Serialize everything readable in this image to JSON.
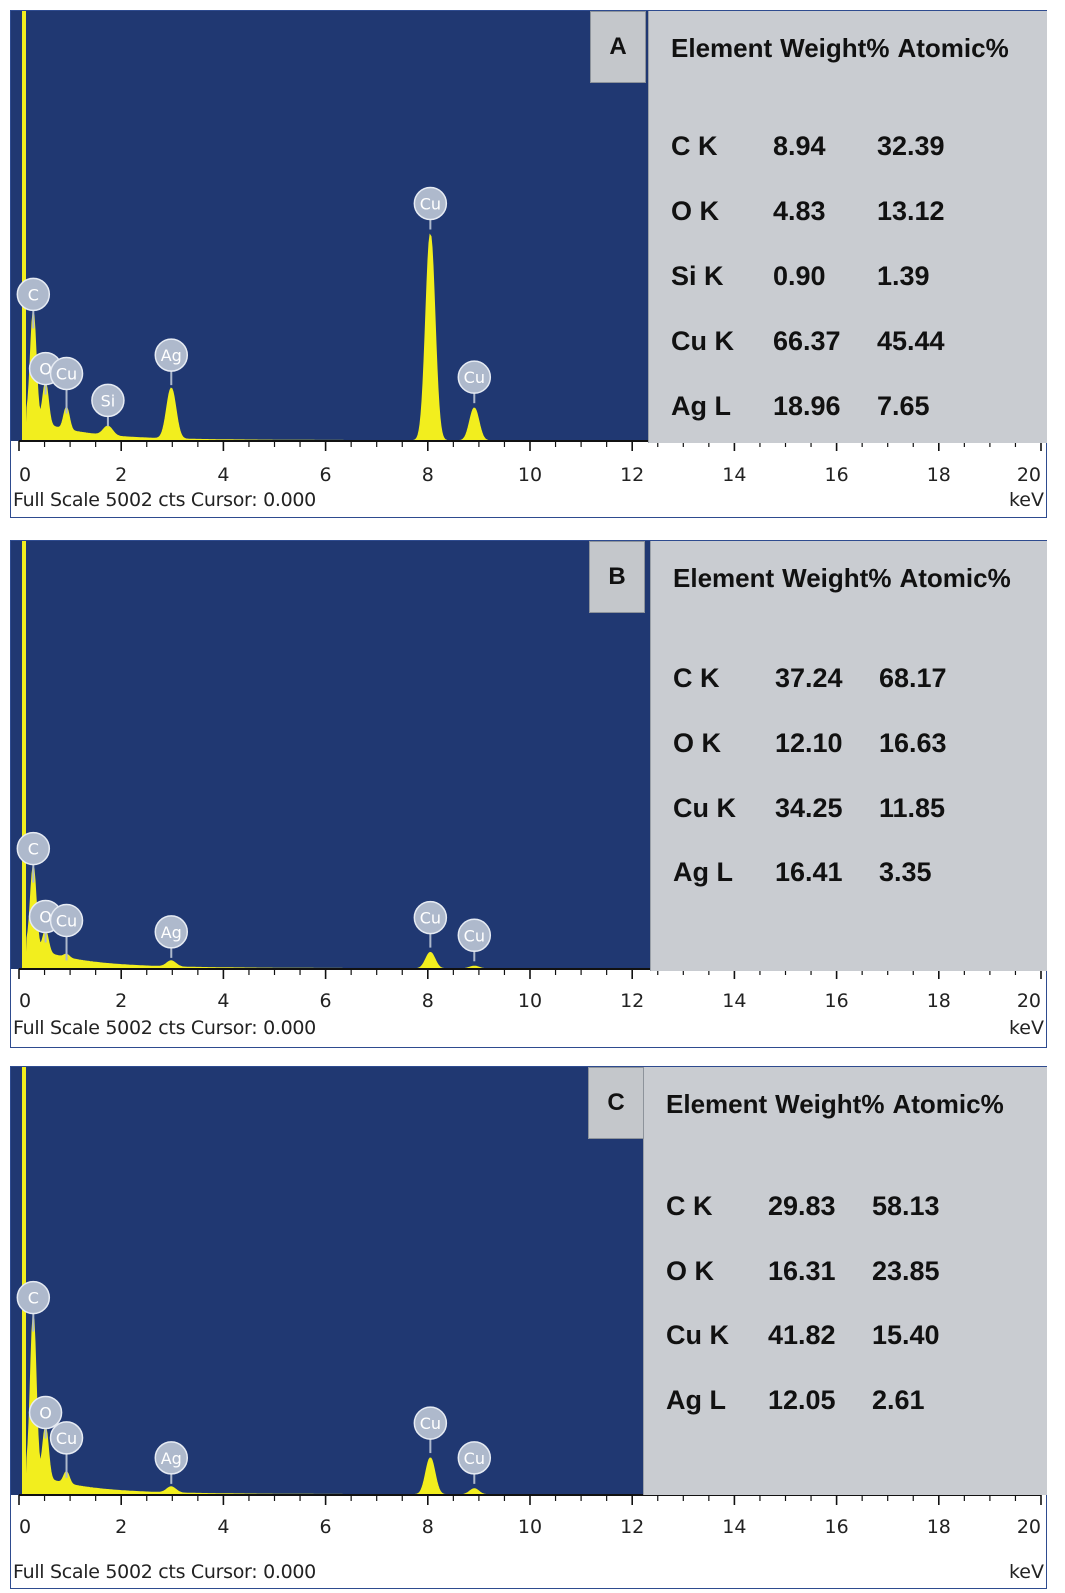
{
  "colors": {
    "plot_bg": "#203872",
    "spectrum": "#f2ee1e",
    "badge": "#aeb9cc",
    "table_bg": "#c9ccd1"
  },
  "panels": [
    {
      "letter": "A",
      "footer": "Full Scale 5002 cts Cursor: 0.000",
      "unit": "keV",
      "x_ticks": [
        "0",
        "2",
        "4",
        "6",
        "8",
        "10",
        "12",
        "14",
        "16",
        "18",
        "20"
      ],
      "table_headers": [
        "Element",
        "Weight%",
        "Atomic%"
      ],
      "rows": [
        {
          "element": "C K",
          "weight": "8.94",
          "atomic": "32.39"
        },
        {
          "element": "O K",
          "weight": "4.83",
          "atomic": "13.12"
        },
        {
          "element": "Si K",
          "weight": "0.90",
          "atomic": "1.39"
        },
        {
          "element": "Cu K",
          "weight": "66.37",
          "atomic": "45.44"
        },
        {
          "element": "Ag L",
          "weight": "18.96",
          "atomic": "7.65"
        }
      ],
      "peak_labels": [
        "C",
        "O",
        "Cu",
        "Si",
        "Ag",
        "Cu",
        "Cu"
      ]
    },
    {
      "letter": "B",
      "footer": "Full Scale 5002 cts Cursor: 0.000",
      "unit": "keV",
      "x_ticks": [
        "0",
        "2",
        "4",
        "6",
        "8",
        "10",
        "12",
        "14",
        "16",
        "18",
        "20"
      ],
      "table_headers": [
        "Element",
        "Weight%",
        "Atomic%"
      ],
      "rows": [
        {
          "element": "C K",
          "weight": "37.24",
          "atomic": "68.17"
        },
        {
          "element": "O K",
          "weight": "12.10",
          "atomic": "16.63"
        },
        {
          "element": "Cu K",
          "weight": "34.25",
          "atomic": "11.85"
        },
        {
          "element": "Ag L",
          "weight": "16.41",
          "atomic": "3.35"
        }
      ],
      "peak_labels": [
        "C",
        "O",
        "Cu",
        "Ag",
        "Cu",
        "Cu"
      ]
    },
    {
      "letter": "C",
      "footer": "Full Scale 5002 cts Cursor: 0.000",
      "unit": "keV",
      "x_ticks": [
        "0",
        "2",
        "4",
        "6",
        "8",
        "10",
        "12",
        "14",
        "16",
        "18",
        "20"
      ],
      "table_headers": [
        "Element",
        "Weight%",
        "Atomic%"
      ],
      "rows": [
        {
          "element": "C K",
          "weight": "29.83",
          "atomic": "58.13"
        },
        {
          "element": "O K",
          "weight": "16.31",
          "atomic": "23.85"
        },
        {
          "element": "Cu K",
          "weight": "41.82",
          "atomic": "15.40"
        },
        {
          "element": "Ag L",
          "weight": "12.05",
          "atomic": "2.61"
        }
      ],
      "peak_labels": [
        "C",
        "O",
        "Cu",
        "Ag",
        "Cu",
        "Cu"
      ]
    }
  ],
  "chart_data": [
    {
      "type": "area",
      "panel": "A",
      "xlabel": "keV",
      "xlim": [
        0,
        20
      ],
      "ylim": [
        0,
        5002
      ],
      "full_scale_counts": 5002,
      "peaks": [
        {
          "label": "C",
          "x": 0.28,
          "y": 1250
        },
        {
          "label": "O",
          "x": 0.52,
          "y": 480
        },
        {
          "label": "Cu",
          "x": 0.93,
          "y": 260
        },
        {
          "label": "Si",
          "x": 1.74,
          "y": 110
        },
        {
          "label": "Ag",
          "x": 2.98,
          "y": 590
        },
        {
          "label": "Cu",
          "x": 8.05,
          "y": 2400
        },
        {
          "label": "Cu",
          "x": 8.91,
          "y": 380
        }
      ],
      "table": {
        "columns": [
          "Element",
          "Weight%",
          "Atomic%"
        ],
        "rows": [
          [
            "C K",
            8.94,
            32.39
          ],
          [
            "O K",
            4.83,
            13.12
          ],
          [
            "Si K",
            0.9,
            1.39
          ],
          [
            "Cu K",
            66.37,
            45.44
          ],
          [
            "Ag L",
            18.96,
            7.65
          ]
        ]
      }
    },
    {
      "type": "area",
      "panel": "B",
      "xlabel": "keV",
      "xlim": [
        0,
        20
      ],
      "ylim": [
        0,
        5002
      ],
      "full_scale_counts": 5002,
      "peaks": [
        {
          "label": "C",
          "x": 0.28,
          "y": 950
        },
        {
          "label": "O",
          "x": 0.52,
          "y": 250
        },
        {
          "label": "Cu",
          "x": 0.93,
          "y": 40
        },
        {
          "label": "Ag",
          "x": 2.98,
          "y": 70
        },
        {
          "label": "Cu",
          "x": 8.05,
          "y": 190
        },
        {
          "label": "Cu",
          "x": 8.91,
          "y": 30
        }
      ],
      "table": {
        "columns": [
          "Element",
          "Weight%",
          "Atomic%"
        ],
        "rows": [
          [
            "C K",
            37.24,
            68.17
          ],
          [
            "O K",
            12.1,
            16.63
          ],
          [
            "Cu K",
            34.25,
            11.85
          ],
          [
            "Ag L",
            16.41,
            3.35
          ]
        ]
      }
    },
    {
      "type": "area",
      "panel": "C",
      "xlabel": "keV",
      "xlim": [
        0,
        20
      ],
      "ylim": [
        0,
        5002
      ],
      "full_scale_counts": 5002,
      "peaks": [
        {
          "label": "C",
          "x": 0.28,
          "y": 1850
        },
        {
          "label": "O",
          "x": 0.52,
          "y": 600
        },
        {
          "label": "Cu",
          "x": 0.93,
          "y": 140
        },
        {
          "label": "Ag",
          "x": 2.98,
          "y": 70
        },
        {
          "label": "Cu",
          "x": 8.05,
          "y": 430
        },
        {
          "label": "Cu",
          "x": 8.91,
          "y": 70
        }
      ],
      "table": {
        "columns": [
          "Element",
          "Weight%",
          "Atomic%"
        ],
        "rows": [
          [
            "C K",
            29.83,
            58.13
          ],
          [
            "O K",
            16.31,
            23.85
          ],
          [
            "Cu K",
            41.82,
            15.4
          ],
          [
            "Ag L",
            12.05,
            2.61
          ]
        ]
      }
    }
  ]
}
